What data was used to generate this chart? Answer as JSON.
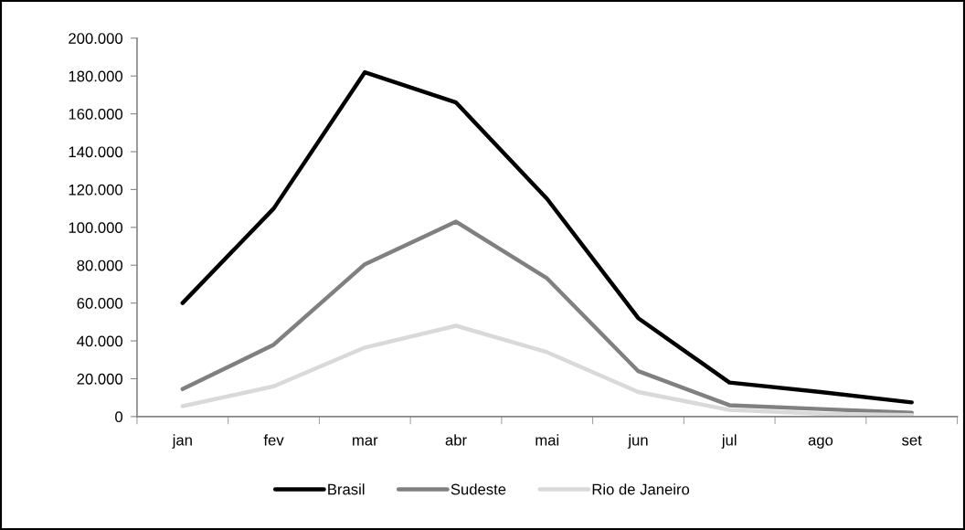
{
  "chart_data": {
    "type": "line",
    "categories": [
      "jan",
      "fev",
      "mar",
      "abr",
      "mai",
      "jun",
      "jul",
      "ago",
      "set"
    ],
    "series": [
      {
        "name": "Brasil",
        "color": "#000000",
        "values": [
          60000,
          110000,
          182000,
          166000,
          115000,
          52000,
          18000,
          13000,
          7500
        ]
      },
      {
        "name": "Sudeste",
        "color": "#808080",
        "values": [
          14500,
          38000,
          80500,
          103000,
          73000,
          24000,
          6000,
          4000,
          2000
        ]
      },
      {
        "name": "Rio de Janeiro",
        "color": "#d9d9d9",
        "values": [
          5500,
          16000,
          36500,
          48000,
          34000,
          13000,
          3500,
          1500,
          800
        ]
      }
    ],
    "ylim": [
      0,
      200000
    ],
    "yticks": [
      0,
      {
        "value": 20000,
        "label": "20.000"
      },
      {
        "value": 40000,
        "label": "40.000"
      },
      {
        "value": 60000,
        "label": "60.000"
      },
      {
        "value": 80000,
        "label": "80.000"
      },
      {
        "value": 100000,
        "label": "100.000"
      },
      {
        "value": 120000,
        "label": "120.000"
      },
      {
        "value": 140000,
        "label": "140.000"
      },
      {
        "value": 160000,
        "label": "160.000"
      },
      {
        "value": 180000,
        "label": "180.000"
      },
      {
        "value": 200000,
        "label": "200.000"
      }
    ],
    "legend": "bottom"
  }
}
